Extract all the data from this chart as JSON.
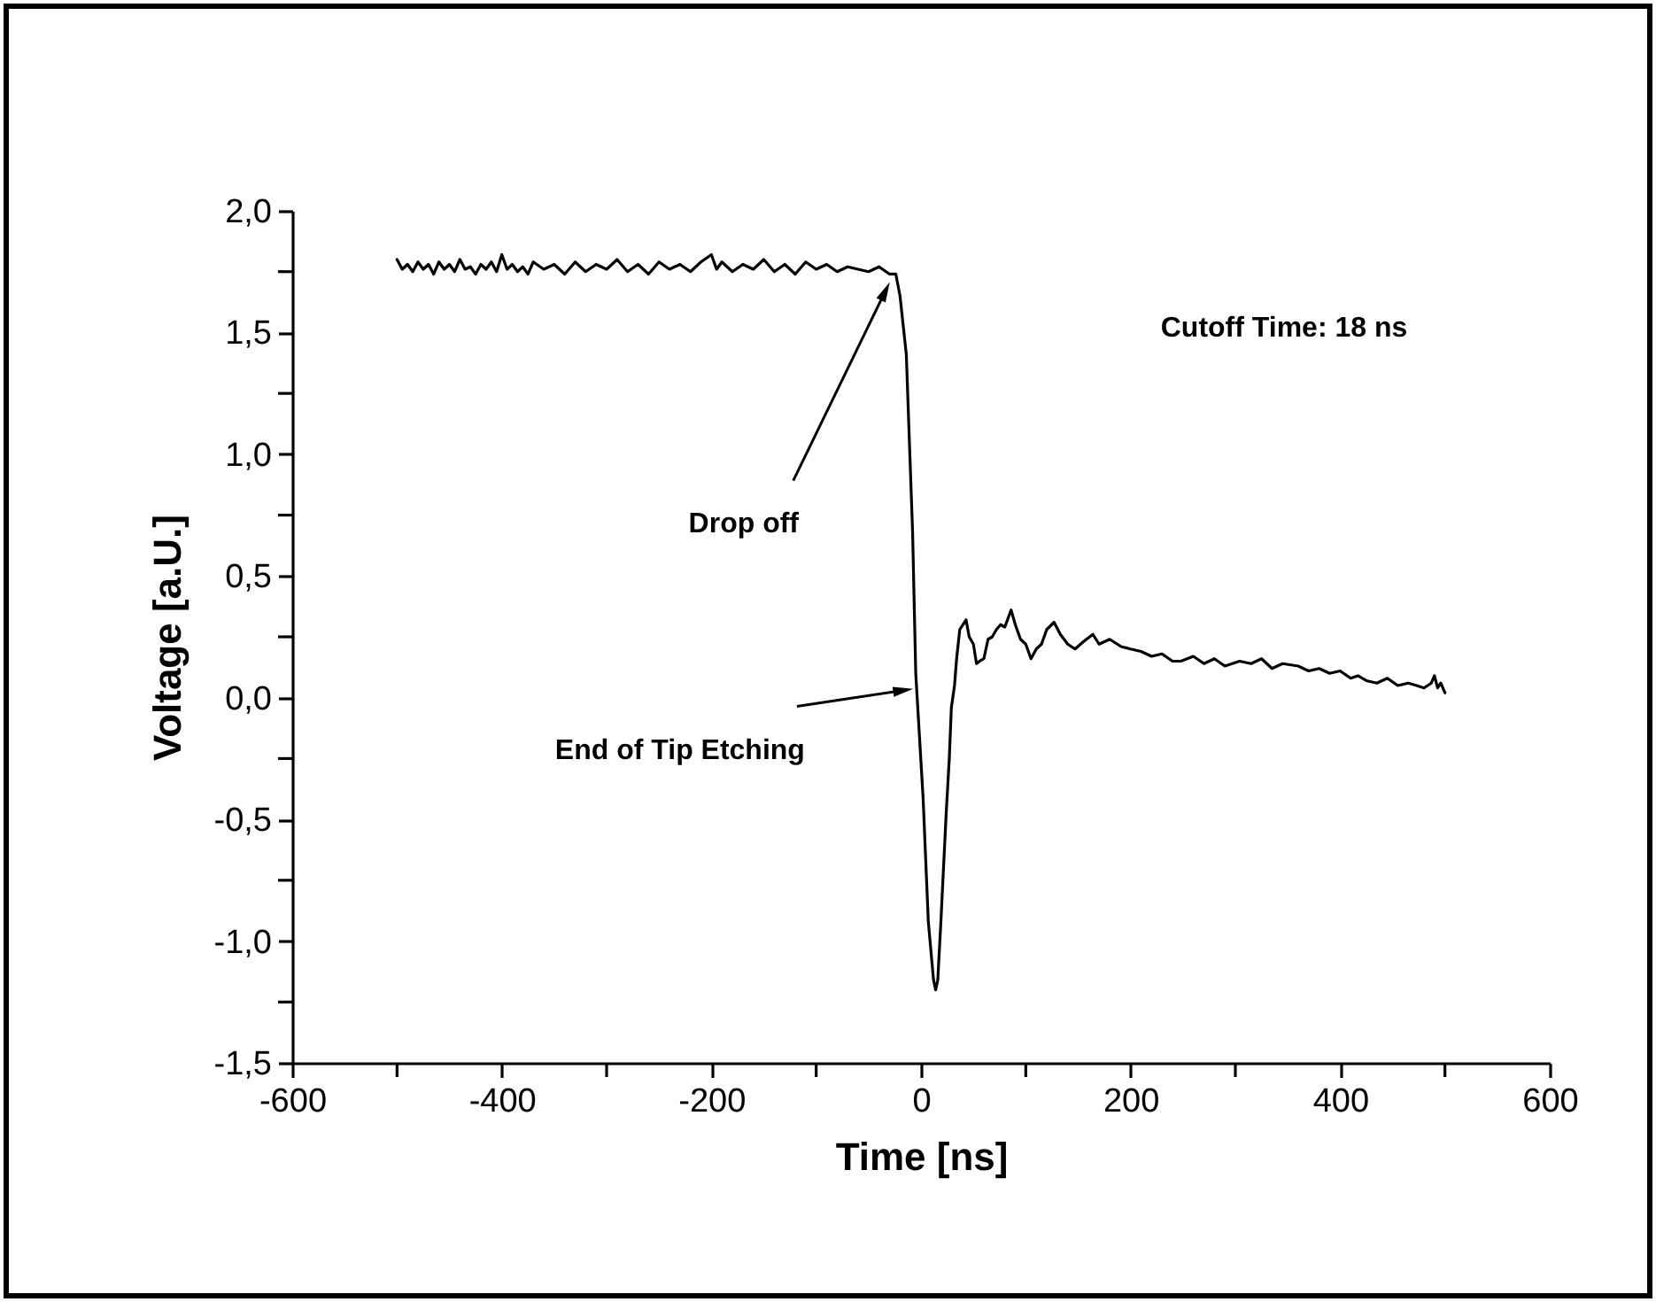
{
  "chart_data": {
    "type": "line",
    "xlabel": "Time [ns]",
    "ylabel": "Voltage [a.U.]",
    "xlim": [
      -600,
      600
    ],
    "xticks": [
      -600,
      {
        "value": -500,
        "label": null
      },
      -400,
      {
        "value": -300,
        "label": null
      },
      -200,
      {
        "value": -100,
        "label": null
      },
      0,
      {
        "value": 100,
        "label": null
      },
      200,
      {
        "value": 300,
        "label": null
      },
      400,
      {
        "value": 500,
        "label": null
      },
      600
    ],
    "ylim": [
      -1.5,
      2.0
    ],
    "yticks": [
      {
        "value": -1.5,
        "label": "-1,5"
      },
      {
        "value": -1.25,
        "label": null
      },
      {
        "value": -1.0,
        "label": "-1,0"
      },
      {
        "value": -0.75,
        "label": null
      },
      {
        "value": -0.5,
        "label": "-0,5"
      },
      {
        "value": -0.25,
        "label": null
      },
      {
        "value": 0,
        "label": "0,0"
      },
      {
        "value": 0.25,
        "label": null
      },
      {
        "value": 0.5,
        "label": "0,5"
      },
      {
        "value": 0.75,
        "label": null
      },
      {
        "value": 1.0,
        "label": "1,0"
      },
      {
        "value": 1.25,
        "label": null
      },
      {
        "value": 1.5,
        "label": "1,5"
      },
      {
        "value": 1.75,
        "label": null
      },
      {
        "value": 2.0,
        "label": "2,0"
      }
    ],
    "annotations": [
      {
        "text": "Drop off",
        "x": -34,
        "y": 1.67
      },
      {
        "text": "End of Tip Etching",
        "x": -17,
        "y": 0.03
      },
      "Cutoff Time: 18 ns"
    ],
    "marker": "none",
    "line_style": "solid",
    "series": [
      {
        "color": "#000000",
        "x": [
          -500,
          -495,
          -490,
          -485,
          -480,
          -475,
          -470,
          -465,
          -460,
          -455,
          -450,
          -445,
          -440,
          -435,
          -430,
          -425,
          -420,
          -415,
          -410,
          -405,
          -400,
          -395,
          -390,
          -385,
          -380,
          -375,
          -370,
          -360,
          -350,
          -340,
          -330,
          -320,
          -310,
          -300,
          -290,
          -280,
          -270,
          -260,
          -250,
          -240,
          -230,
          -220,
          -210,
          -200,
          -195,
          -190,
          -180,
          -170,
          -160,
          -150,
          -140,
          -130,
          -120,
          -110,
          -100,
          -90,
          -80,
          -70,
          -60,
          -50,
          -40,
          -30,
          -24,
          -20,
          -14,
          -8,
          -5,
          2,
          7,
          12,
          14,
          16,
          19,
          24,
          27,
          29,
          32,
          34,
          37,
          40,
          43,
          46,
          50,
          53,
          56,
          60,
          64,
          68,
          72,
          76,
          80,
          86,
          90,
          95,
          100,
          105,
          110,
          115,
          120,
          127,
          133,
          140,
          147,
          155,
          164,
          170,
          180,
          191,
          200,
          210,
          220,
          230,
          240,
          248,
          260,
          270,
          280,
          290,
          304,
          315,
          325,
          335,
          345,
          360,
          370,
          380,
          390,
          400,
          410,
          417,
          425,
          435,
          445,
          455,
          465,
          473,
          480,
          487,
          490,
          493,
          496,
          500
        ],
        "values": [
          1.8,
          1.76,
          1.78,
          1.75,
          1.79,
          1.76,
          1.78,
          1.74,
          1.79,
          1.76,
          1.78,
          1.75,
          1.8,
          1.76,
          1.77,
          1.74,
          1.78,
          1.76,
          1.79,
          1.75,
          1.82,
          1.76,
          1.78,
          1.75,
          1.77,
          1.74,
          1.79,
          1.76,
          1.78,
          1.74,
          1.79,
          1.75,
          1.78,
          1.76,
          1.8,
          1.75,
          1.78,
          1.74,
          1.79,
          1.76,
          1.78,
          1.75,
          1.79,
          1.82,
          1.76,
          1.79,
          1.75,
          1.78,
          1.76,
          1.8,
          1.75,
          1.78,
          1.74,
          1.79,
          1.76,
          1.78,
          1.75,
          1.77,
          1.76,
          1.75,
          1.77,
          1.74,
          1.74,
          1.65,
          1.41,
          0.68,
          0.1,
          -0.41,
          -0.92,
          -1.16,
          -1.2,
          -1.16,
          -0.92,
          -0.48,
          -0.25,
          -0.04,
          0.05,
          0.16,
          0.28,
          0.3,
          0.32,
          0.25,
          0.22,
          0.14,
          0.15,
          0.16,
          0.24,
          0.25,
          0.28,
          0.3,
          0.29,
          0.36,
          0.3,
          0.24,
          0.22,
          0.16,
          0.2,
          0.22,
          0.28,
          0.31,
          0.26,
          0.22,
          0.2,
          0.23,
          0.26,
          0.22,
          0.24,
          0.21,
          0.2,
          0.19,
          0.17,
          0.18,
          0.15,
          0.15,
          0.17,
          0.14,
          0.16,
          0.13,
          0.15,
          0.14,
          0.16,
          0.12,
          0.14,
          0.13,
          0.11,
          0.12,
          0.1,
          0.11,
          0.08,
          0.09,
          0.07,
          0.06,
          0.08,
          0.05,
          0.06,
          0.05,
          0.04,
          0.06,
          0.09,
          0.04,
          0.06,
          0.02
        ]
      }
    ]
  }
}
